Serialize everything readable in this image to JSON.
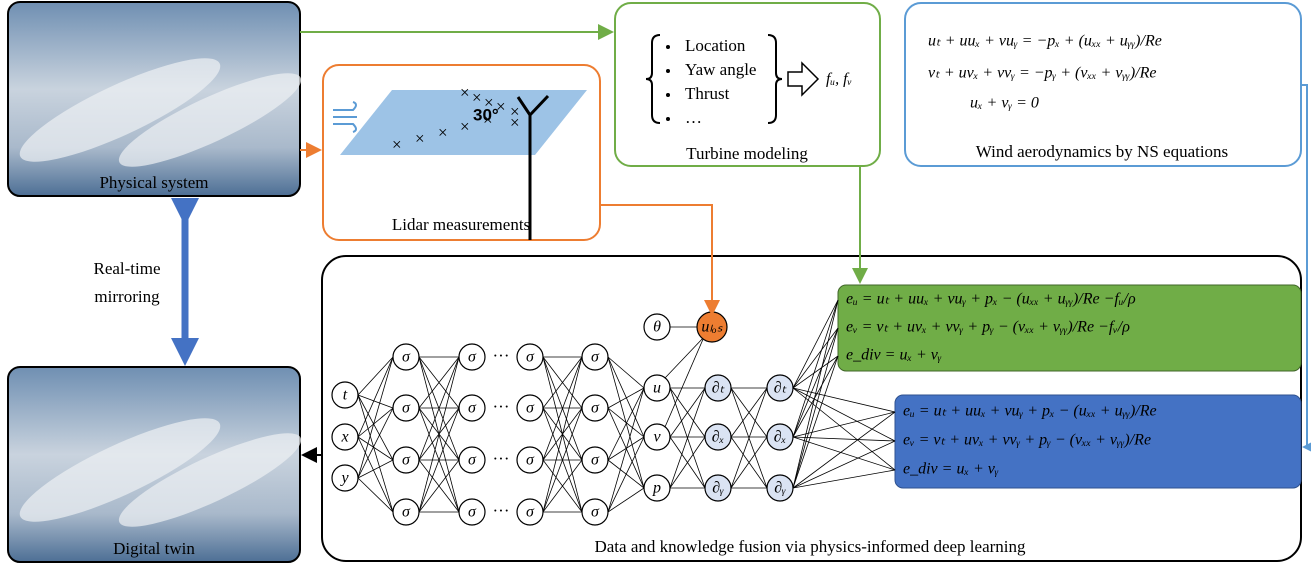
{
  "physical_system": {
    "label": "Physical system"
  },
  "digital_twin": {
    "label": "Digital twin"
  },
  "mirroring": {
    "lines": [
      "Real-time",
      "mirroring"
    ]
  },
  "lidar": {
    "label": "Lidar measurements",
    "angle": "30°"
  },
  "turbine": {
    "items": [
      "Location",
      "Yaw angle",
      "Thrust",
      "…"
    ],
    "output": "fᵤ, fᵥ",
    "label": "Turbine modeling"
  },
  "ns": {
    "equations": [
      "uₜ + uuₓ + vuᵧ = −pₓ + (uₓₓ + uᵧᵧ)/Re",
      "vₜ + uvₓ + vvᵧ = −pᵧ + (vₓₓ + vᵧᵧ)/Re",
      "uₓ + vᵧ = 0"
    ],
    "label": "Wind aerodynamics by NS equations"
  },
  "fusion": {
    "label": "Data and knowledge fusion via physics-informed deep learning",
    "inputs": [
      "t",
      "x",
      "y"
    ],
    "hidden": "σ",
    "ellipsis": "···",
    "outputs": [
      "u",
      "v",
      "p"
    ],
    "theta": "θ",
    "u_los": "uₗₒₛ",
    "derivatives": [
      "∂ₜ",
      "∂ₓ",
      "∂ᵧ"
    ],
    "residual_turbine": [
      "eᵤ = uₜ + uuₓ + vuᵧ + pₓ − (uₓₓ + uᵧᵧ)/Re −fᵤ/ρ",
      "eᵥ = vₜ + uvₓ + vvᵧ + pᵧ − (vₓₓ + vᵧᵧ)/Re −fᵥ/ρ",
      "e_div = uₓ + vᵧ"
    ],
    "residual_free": [
      "eᵤ = uₜ + uuₓ + vuᵧ + pₓ − (uₓₓ + uᵧᵧ)/Re",
      "eᵥ = vₜ + uvₓ + vvᵧ + pᵧ − (vₓₓ + vᵧᵧ)/Re",
      "e_div = uₓ + vᵧ"
    ]
  }
}
